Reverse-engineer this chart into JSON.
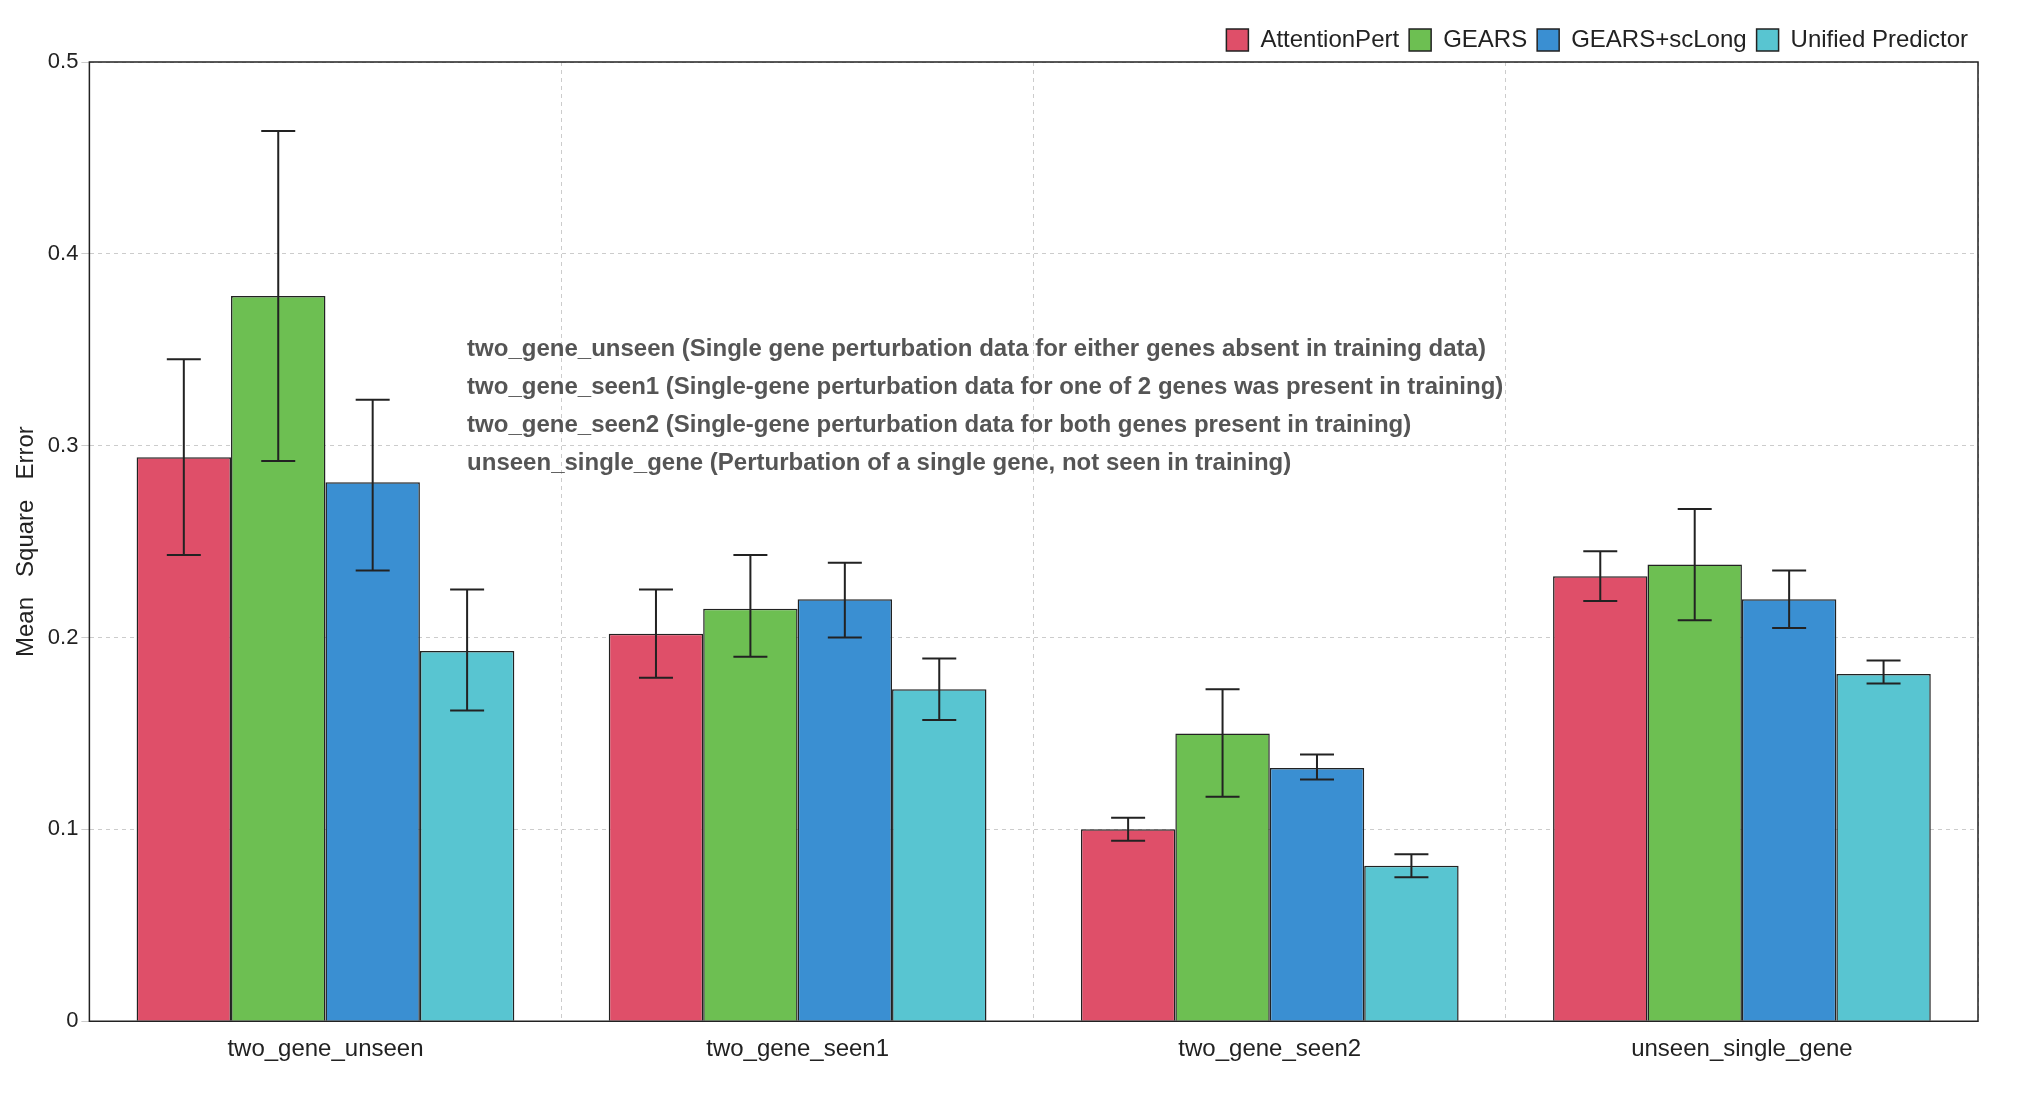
{
  "chart_data": {
    "type": "bar",
    "ylabel": "Mean   Square   Error",
    "categories": [
      "two_gene_unseen",
      "two_gene_seen1",
      "two_gene_seen2",
      "unseen_single_gene"
    ],
    "series": [
      {
        "name": "AttentionPert",
        "color": "#df4f69",
        "values": [
          0.294,
          0.202,
          0.1,
          0.232
        ],
        "errors": [
          [
            0.243,
            0.345
          ],
          [
            0.179,
            0.225
          ],
          [
            0.094,
            0.106
          ],
          [
            0.219,
            0.245
          ]
        ]
      },
      {
        "name": "GEARS",
        "color": "#6dbf52",
        "values": [
          0.378,
          0.215,
          0.15,
          0.238
        ],
        "errors": [
          [
            0.292,
            0.464
          ],
          [
            0.19,
            0.243
          ],
          [
            0.117,
            0.173
          ],
          [
            0.209,
            0.267
          ]
        ]
      },
      {
        "name": "GEARS+scLong",
        "color": "#3a8fd2",
        "values": [
          0.281,
          0.22,
          0.132,
          0.22
        ],
        "errors": [
          [
            0.235,
            0.324
          ],
          [
            0.2,
            0.239
          ],
          [
            0.126,
            0.139
          ],
          [
            0.205,
            0.235
          ]
        ]
      },
      {
        "name": "Unified Predictor",
        "color": "#58c5d1",
        "values": [
          0.193,
          0.173,
          0.081,
          0.181
        ],
        "errors": [
          [
            0.162,
            0.225
          ],
          [
            0.157,
            0.189
          ],
          [
            0.075,
            0.087
          ],
          [
            0.176,
            0.188
          ]
        ]
      }
    ],
    "ylim": [
      0,
      0.5
    ],
    "yticks": [
      0,
      0.1,
      0.2,
      0.3,
      0.4,
      0.5
    ],
    "grid": true,
    "legend": "top right",
    "annotations": [
      "two_gene_unseen (Single gene perturbation data for either genes absent in training data)",
      "two_gene_seen1 (Single-gene perturbation data for one of 2 genes was present in training)",
      "two_gene_seen2 (Single-gene perturbation data for both genes present in training)",
      "unseen_single_gene (Perturbation of a single gene, not seen in training)"
    ]
  }
}
